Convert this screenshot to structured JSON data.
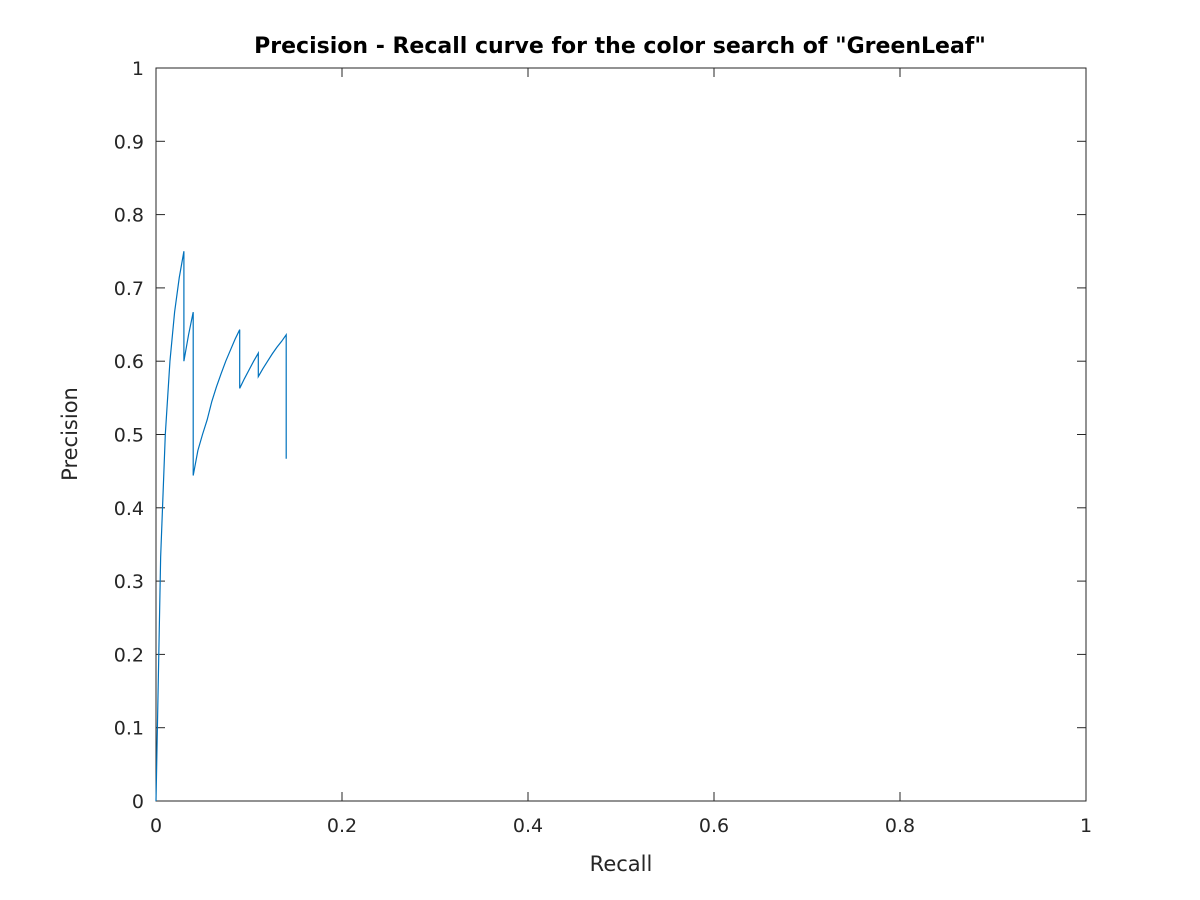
{
  "chart_data": {
    "type": "line",
    "title": "Precision - Recall curve for the color search of \"GreenLeaf\"",
    "xlabel": "Recall",
    "ylabel": "Precision",
    "xlim": [
      0,
      1
    ],
    "ylim": [
      0,
      1
    ],
    "xticks": [
      "0",
      "0.2",
      "0.4",
      "0.6",
      "0.8",
      "1"
    ],
    "yticks": [
      "0",
      "0.1",
      "0.2",
      "0.3",
      "0.4",
      "0.5",
      "0.6",
      "0.7",
      "0.8",
      "0.9",
      "1"
    ],
    "grid": false,
    "line_color": "#0072bd",
    "series": [
      {
        "x": [
          0,
          0.005,
          0.01,
          0.015,
          0.02,
          0.025,
          0.03,
          0.03,
          0.035,
          0.04,
          0.04,
          0.045,
          0.05,
          0.055,
          0.06,
          0.065,
          0.07,
          0.075,
          0.08,
          0.085,
          0.09,
          0.09,
          0.095,
          0.1,
          0.105,
          0.11,
          0.11,
          0.115,
          0.12,
          0.125,
          0.13,
          0.135,
          0.14,
          0.14
        ],
        "y": [
          0,
          0.333,
          0.5,
          0.6,
          0.667,
          0.714,
          0.75,
          0.6,
          0.636,
          0.667,
          0.444,
          0.478,
          0.5,
          0.52,
          0.545,
          0.565,
          0.583,
          0.6,
          0.615,
          0.63,
          0.643,
          0.563,
          0.576,
          0.588,
          0.6,
          0.611,
          0.579,
          0.59,
          0.6,
          0.61,
          0.619,
          0.627,
          0.636,
          0.467
        ]
      }
    ]
  }
}
